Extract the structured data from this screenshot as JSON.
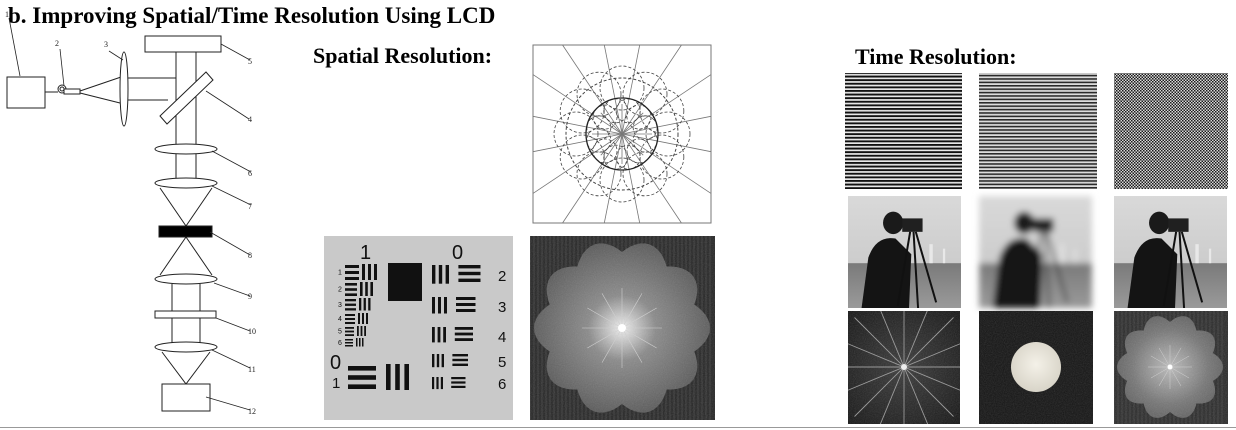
{
  "header": {
    "title": "b. Improving Spatial/Time Resolution Using LCD"
  },
  "spatial": {
    "heading": "Spatial Resolution:"
  },
  "time": {
    "heading": "Time Resolution:"
  },
  "setup": {
    "labels": [
      "1",
      "2",
      "3",
      "4",
      "5",
      "6",
      "7",
      "8",
      "9",
      "10",
      "11",
      "12"
    ]
  },
  "target": {
    "group_labels": [
      "1",
      "0",
      "0"
    ],
    "element_labels": [
      "2",
      "3",
      "4",
      "5",
      "6"
    ],
    "small_labels": [
      "1",
      "2",
      "3",
      "4",
      "5",
      "6",
      "1"
    ]
  },
  "colors": {
    "target_bg": "#c9c9c9",
    "ink": "#111111",
    "spectrum_bg": "#262626"
  }
}
